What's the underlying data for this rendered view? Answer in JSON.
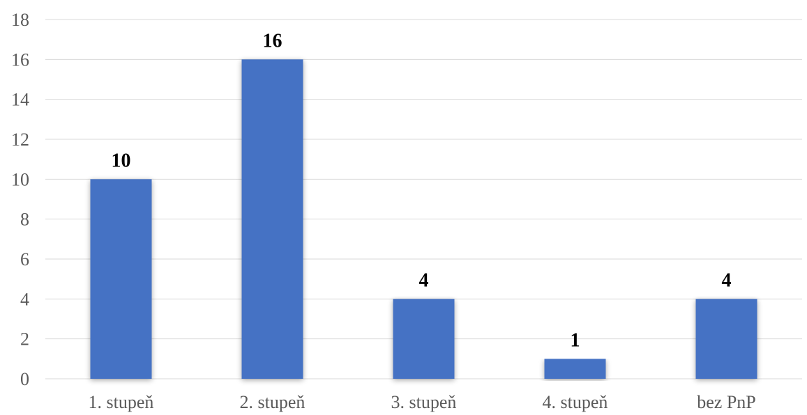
{
  "chart_data": {
    "type": "bar",
    "categories": [
      "1. stupeň",
      "2. stupeň",
      "3. stupeň",
      "4. stupeň",
      "bez PnP"
    ],
    "values": [
      10,
      16,
      4,
      1,
      4
    ],
    "title": "",
    "xlabel": "",
    "ylabel": "",
    "ylim": [
      0,
      18
    ],
    "yticks": [
      0,
      2,
      4,
      6,
      8,
      10,
      12,
      14,
      16,
      18
    ],
    "grid": true,
    "legend": "none",
    "data_labels": true,
    "bar_color": "#4472c4"
  }
}
